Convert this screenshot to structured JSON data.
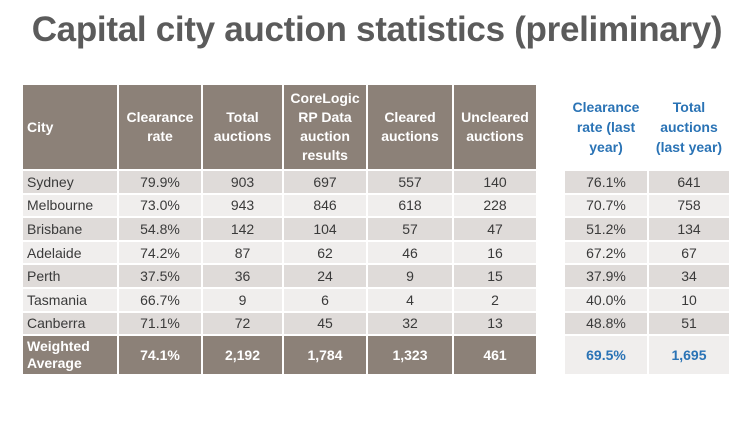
{
  "title": "Capital city auction statistics (preliminary)",
  "main_headers": [
    "City",
    "Clearance rate",
    "Total auctions",
    "CoreLogic RP Data auction results",
    "Cleared auctions",
    "Uncleared auctions"
  ],
  "side_headers": [
    "Clearance rate (last year)",
    "Total auctions (last year)"
  ],
  "rows": [
    {
      "city": "Sydney",
      "clearance": "79.9%",
      "total": "903",
      "results": "697",
      "cleared": "557",
      "uncleared": "140",
      "ly_clearance": "76.1%",
      "ly_total": "641"
    },
    {
      "city": "Melbourne",
      "clearance": "73.0%",
      "total": "943",
      "results": "846",
      "cleared": "618",
      "uncleared": "228",
      "ly_clearance": "70.7%",
      "ly_total": "758"
    },
    {
      "city": "Brisbane",
      "clearance": "54.8%",
      "total": "142",
      "results": "104",
      "cleared": "57",
      "uncleared": "47",
      "ly_clearance": "51.2%",
      "ly_total": "134"
    },
    {
      "city": "Adelaide",
      "clearance": "74.2%",
      "total": "87",
      "results": "62",
      "cleared": "46",
      "uncleared": "16",
      "ly_clearance": "67.2%",
      "ly_total": "67"
    },
    {
      "city": "Perth",
      "clearance": "37.5%",
      "total": "36",
      "results": "24",
      "cleared": "9",
      "uncleared": "15",
      "ly_clearance": "37.9%",
      "ly_total": "34"
    },
    {
      "city": "Tasmania",
      "clearance": "66.7%",
      "total": "9",
      "results": "6",
      "cleared": "4",
      "uncleared": "2",
      "ly_clearance": "40.0%",
      "ly_total": "10"
    },
    {
      "city": "Canberra",
      "clearance": "71.1%",
      "total": "72",
      "results": "45",
      "cleared": "32",
      "uncleared": "13",
      "ly_clearance": "48.8%",
      "ly_total": "51"
    }
  ],
  "average": {
    "city_line1": "Weighted",
    "city_line2": "Average",
    "clearance": "74.1%",
    "total": "2,192",
    "results": "1,784",
    "cleared": "1,323",
    "uncleared": "461",
    "ly_clearance": "69.5%",
    "ly_total": "1,695"
  },
  "colors": {
    "title": "#5b5b5b",
    "header_bg": "#8c8178",
    "row_dark": "#dfdbd9",
    "row_light": "#f0eeed",
    "accent_blue": "#2a73b5"
  }
}
